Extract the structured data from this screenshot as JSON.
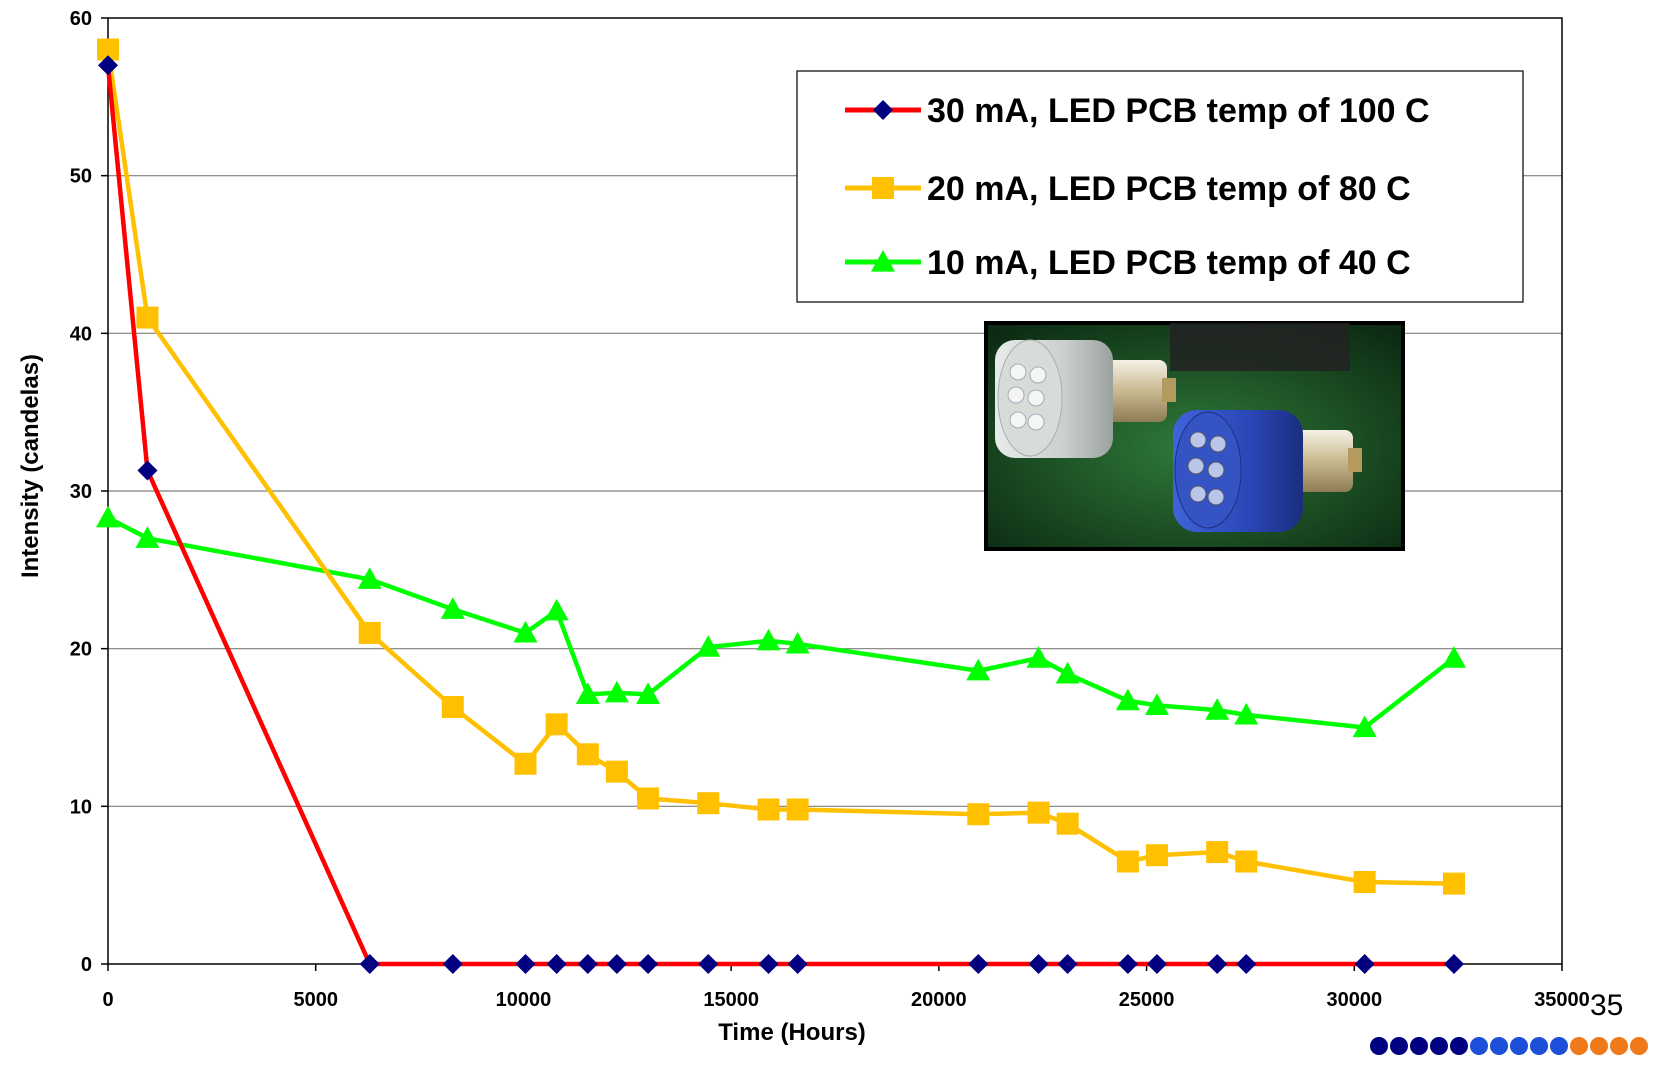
{
  "page_number": "35",
  "chart_data": {
    "type": "line",
    "xlabel": "Time (Hours)",
    "ylabel": "Intensity (candelas)",
    "xlim": [
      0,
      35000
    ],
    "ylim": [
      0,
      60
    ],
    "x_ticks": [
      "0",
      "5000",
      "10000",
      "15000",
      "20000",
      "25000",
      "30000",
      "35000"
    ],
    "y_ticks": [
      "0",
      "10",
      "20",
      "30",
      "40",
      "50",
      "60"
    ],
    "grid": "horizontal",
    "legend_position": "top-right",
    "series": [
      {
        "name": "30 mA, LED PCB temp of 100 C",
        "line_color": "#ff0000",
        "marker": "diamond",
        "marker_color": "#000080",
        "x": [
          0,
          950,
          6300,
          8300,
          10050,
          10800,
          11550,
          12250,
          13000,
          14450,
          15900,
          16600,
          20950,
          22400,
          23100,
          24550,
          25250,
          26700,
          27400,
          30250,
          32400
        ],
        "y": [
          57,
          31.3,
          0,
          0,
          0,
          0,
          0,
          0,
          0,
          0,
          0,
          0,
          0,
          0,
          0,
          0,
          0,
          0,
          0,
          0,
          0
        ]
      },
      {
        "name": "20 mA, LED PCB temp of 80 C",
        "line_color": "#ffc000",
        "marker": "square",
        "marker_color": "#ffc000",
        "x": [
          0,
          950,
          6300,
          8300,
          10050,
          10800,
          11550,
          12250,
          13000,
          14450,
          15900,
          16600,
          20950,
          22400,
          23100,
          24550,
          25250,
          26700,
          27400,
          30250,
          32400
        ],
        "y": [
          58,
          41,
          21,
          16.3,
          12.7,
          15.2,
          13.3,
          12.2,
          10.5,
          10.2,
          9.8,
          9.8,
          9.5,
          9.6,
          8.9,
          6.5,
          6.9,
          7.1,
          6.5,
          5.2,
          5.1
        ]
      },
      {
        "name": "10 mA, LED PCB temp of 40 C",
        "line_color": "#00ff00",
        "marker": "triangle",
        "marker_color": "#00ff00",
        "x": [
          0,
          950,
          6300,
          8300,
          10050,
          10800,
          11550,
          12250,
          13000,
          14450,
          15900,
          16600,
          20950,
          22400,
          23100,
          24550,
          25250,
          26700,
          27400,
          30250,
          32400
        ],
        "y": [
          28.3,
          27,
          24.4,
          22.5,
          21,
          22.4,
          17.1,
          17.2,
          17.1,
          20.1,
          20.5,
          20.3,
          18.6,
          19.4,
          18.4,
          16.7,
          16.4,
          16.1,
          15.8,
          15,
          19.4
        ]
      }
    ]
  },
  "decor": {
    "photo_icon": "led-bulbs-photo",
    "dot_colors": [
      "#000080",
      "#000080",
      "#000080",
      "#000080",
      "#000080",
      "#1e4fd8",
      "#1e4fd8",
      "#1e4fd8",
      "#1e4fd8",
      "#1e4fd8",
      "#f07a1a",
      "#f07a1a",
      "#f07a1a",
      "#f07a1a"
    ]
  }
}
